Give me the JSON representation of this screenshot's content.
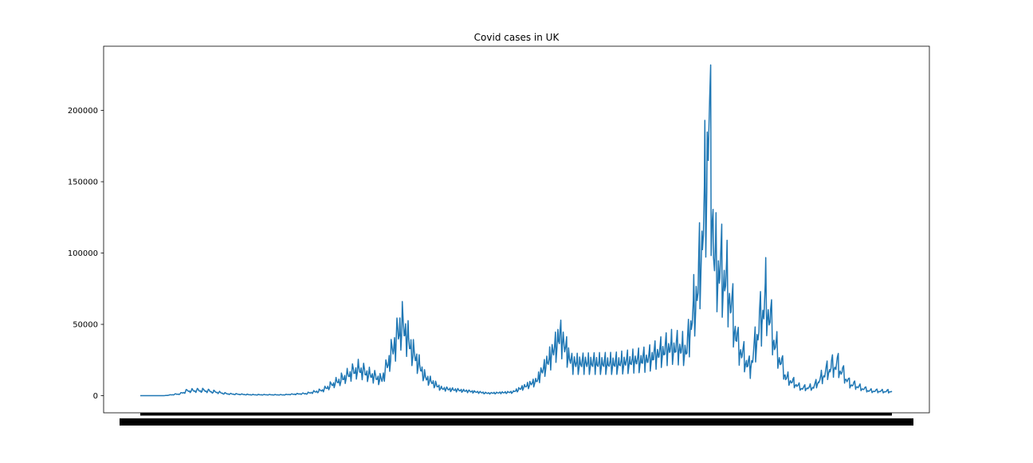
{
  "chart_data": {
    "type": "line",
    "title": "Covid cases in UK",
    "xlabel": "",
    "ylabel": "",
    "ylim": [
      -12000,
      245000
    ],
    "yticks": [
      0,
      50000,
      100000,
      150000,
      200000
    ],
    "ytick_labels": [
      "0",
      "50000",
      "100000",
      "150000",
      "200000"
    ],
    "grid": false,
    "legend": "none",
    "line_color": "#1f77b4",
    "x_note": "x tick labels are dense overlapping dates and are illegible",
    "x": [
      0,
      2,
      4,
      6,
      8,
      10,
      12,
      14,
      16,
      18,
      20,
      22,
      24,
      26,
      28,
      30,
      32,
      34,
      36,
      38,
      40,
      42,
      44,
      46,
      48,
      50,
      52,
      54,
      56,
      58,
      60,
      62,
      64,
      66,
      68,
      70,
      72,
      74,
      76,
      78,
      80,
      82,
      84,
      86,
      88,
      90,
      92,
      94,
      96,
      98,
      100,
      102,
      104,
      106,
      108,
      110,
      112,
      114,
      116,
      118,
      120,
      122,
      124,
      126,
      128,
      130,
      132,
      134,
      136,
      138,
      140,
      142,
      144,
      146,
      148,
      150,
      152,
      154,
      156,
      158,
      160,
      162,
      164,
      166,
      168,
      170,
      172,
      174,
      176,
      178,
      180,
      182,
      184,
      186,
      188,
      190,
      192,
      194,
      196,
      198,
      200,
      202,
      204,
      206,
      208,
      210,
      212,
      214,
      216,
      218,
      220,
      222,
      224,
      226,
      228,
      230,
      232,
      234,
      236,
      238,
      240,
      242,
      244,
      246,
      248,
      250,
      252,
      254,
      256,
      258,
      260,
      262,
      264,
      266,
      268,
      270,
      272,
      274,
      276,
      278,
      280,
      282,
      284,
      286,
      288,
      290,
      292,
      294,
      296,
      298,
      300,
      302,
      304,
      306,
      308,
      310,
      312,
      314,
      316,
      318,
      320,
      322,
      324,
      326,
      328,
      330,
      332,
      334,
      336,
      338,
      340,
      342,
      344,
      346,
      348,
      350,
      352,
      354,
      356,
      358,
      360,
      362,
      364,
      366,
      368,
      370,
      372,
      374,
      376,
      378,
      380,
      382,
      384,
      386,
      388,
      390,
      392,
      394,
      396,
      398,
      400,
      402,
      404,
      406,
      408,
      410,
      412,
      414,
      416,
      418,
      420,
      422,
      424,
      426,
      428,
      430,
      432,
      434,
      436,
      438,
      440,
      442,
      444,
      446,
      448,
      450,
      452,
      454,
      456,
      458,
      460,
      462,
      464,
      466,
      468,
      470,
      472,
      474,
      476,
      478,
      480,
      482,
      484,
      486,
      488,
      490,
      492,
      494,
      496,
      498,
      500,
      502,
      504,
      506,
      508,
      510,
      512,
      514,
      516,
      518,
      520,
      522,
      524,
      526,
      528,
      530,
      532,
      534,
      536,
      538,
      540,
      542,
      544,
      546,
      548,
      550,
      552,
      554,
      556,
      558,
      560,
      562,
      564,
      566,
      568,
      570,
      572,
      574,
      576,
      578,
      580,
      582,
      584,
      586,
      588,
      590,
      592,
      594,
      596,
      598,
      600,
      602,
      604,
      606,
      608,
      610,
      612,
      614,
      616,
      618,
      620,
      622,
      624,
      626,
      628,
      630,
      632,
      634,
      636,
      638,
      640,
      642,
      644,
      646,
      648,
      650,
      652,
      654,
      656,
      658,
      660,
      662,
      664,
      666,
      668,
      670,
      672,
      674,
      676,
      678,
      680,
      682,
      684,
      686,
      688,
      690,
      692,
      694,
      696,
      698,
      700,
      702,
      704,
      706,
      708,
      710,
      712,
      714,
      716,
      718,
      720,
      722,
      724,
      726,
      728,
      730,
      732,
      734,
      736,
      738,
      740,
      742,
      744,
      746,
      748,
      750,
      752,
      754,
      756,
      758,
      760,
      762,
      764,
      766,
      768,
      770,
      772,
      774,
      776,
      778,
      780,
      782,
      784,
      786,
      788,
      790,
      792,
      794,
      796,
      798,
      800,
      802,
      804,
      806,
      808,
      810,
      812,
      814,
      816,
      818,
      820,
      822,
      824,
      826,
      828,
      830,
      832,
      834,
      836,
      838,
      840,
      842,
      844,
      846,
      848,
      850,
      852,
      854,
      856,
      858,
      860,
      862,
      864,
      866,
      868,
      870,
      872,
      874,
      876,
      878,
      880,
      882,
      884,
      886,
      888,
      890,
      892,
      894,
      896,
      898,
      900,
      902,
      904,
      906,
      908,
      910,
      912,
      914,
      916,
      918,
      920,
      922,
      924,
      926,
      928,
      930,
      932,
      934,
      936,
      938,
      940,
      942,
      944,
      946,
      948,
      950,
      952,
      954,
      956,
      958,
      960,
      962,
      964,
      966,
      968,
      970,
      972,
      974,
      976,
      978,
      980,
      982,
      984,
      986,
      988,
      990,
      992,
      994,
      996,
      998,
      1000,
      1002,
      1004,
      1006,
      1008,
      1010,
      1012,
      1014,
      1016,
      1018,
      1020,
      1022,
      1024,
      1026,
      1028,
      1030,
      1032,
      1034,
      1036,
      1038,
      1040,
      1042,
      1044,
      1046,
      1048,
      1050,
      1052,
      1054,
      1056,
      1058,
      1060,
      1062,
      1064,
      1066,
      1068,
      1070,
      1072,
      1074,
      1076,
      1078,
      1080,
      1082,
      1084,
      1086,
      1088,
      1090,
      1092,
      1094,
      1096,
      1098,
      1100,
      1102,
      1104,
      1106,
      1108,
      1110,
      1112,
      1114,
      1116,
      1118,
      1120,
      1122,
      1124,
      1126,
      1128,
      1130,
      1132,
      1134,
      1136,
      1138,
      1140,
      1142,
      1144,
      1146,
      1148,
      1150,
      1152,
      1154,
      1156,
      1158,
      1160,
      1162,
      1164,
      1166,
      1168,
      1170,
      1172,
      1174,
      1176,
      1178,
      1180,
      1182,
      1184,
      1186,
      1188,
      1190,
      1192,
      1194,
      1196,
      1198,
      1200,
      1202,
      1204,
      1206,
      1208,
      1210,
      1212,
      1214,
      1216,
      1218,
      1220,
      1222,
      1224,
      1226,
      1228,
      1230,
      1232,
      1234,
      1236,
      1238,
      1240,
      1242,
      1244,
      1246,
      1248,
      1250,
      1252,
      1254,
      1256,
      1258,
      1260,
      1262,
      1264,
      1266,
      1268,
      1270,
      1272,
      1274,
      1276,
      1278,
      1280,
      1282,
      1284,
      1286,
      1288,
      1290,
      1292,
      1294,
      1296,
      1298,
      1300,
      1302,
      1304,
      1306,
      1308,
      1310,
      1312,
      1314,
      1316,
      1318,
      1320,
      1322,
      1324,
      1326,
      1328,
      1330,
      1332,
      1334,
      1336,
      1338,
      1340,
      1342,
      1344,
      1346,
      1348,
      1350,
      1352,
      1354,
      1356,
      1358,
      1360,
      1362,
      1364,
      1366,
      1368,
      1370,
      1372,
      1374,
      1376,
      1378,
      1380,
      1382,
      1384,
      1386,
      1388,
      1390,
      1392,
      1394,
      1396,
      1398,
      1400,
      1402,
      1404,
      1406,
      1408,
      1410,
      1412,
      1414,
      1416,
      1418,
      1420,
      1422,
      1424,
      1426,
      1428,
      1430,
      1432,
      1434,
      1436,
      1438,
      1440,
      1442,
      1444,
      1446,
      1448,
      1450,
      1452,
      1454,
      1456,
      1458,
      1460,
      1462,
      1464,
      1466,
      1468,
      1470,
      1472,
      1474,
      1476,
      1478,
      1480,
      1482,
      1484,
      1486,
      1488,
      1490,
      1492,
      1494,
      1496,
      1498,
      1500,
      1502,
      1504,
      1506,
      1508,
      1510,
      1512,
      1514,
      1516,
      1518,
      1520,
      1522,
      1524,
      1526,
      1528,
      1530,
      1532,
      1534,
      1536,
      1538,
      1540,
      1542,
      1544,
      1546,
      1548,
      1550,
      1552,
      1554,
      1556,
      1558,
      1560,
      1562,
      1564,
      1566,
      1568,
      1570,
      1572,
      1574,
      1576,
      1578,
      1580,
      1582,
      1584,
      1586,
      1588,
      1590,
      1592,
      1594,
      1596,
      1598,
      1600,
      1602,
      1604,
      1606,
      1608,
      1610,
      1612,
      1614,
      1616,
      1618,
      1620,
      1622,
      1624,
      1626,
      1628,
      1630,
      1632,
      1634,
      1636,
      1638,
      1640,
      1642,
      1644,
      1646,
      1648,
      1650,
      1652,
      1654,
      1656,
      1658,
      1660,
      1662,
      1664,
      1666,
      1668,
      1670,
      1672,
      1674,
      1676,
      1678,
      1680,
      1682,
      1684,
      1686,
      1688,
      1690,
      1692,
      1694,
      1696,
      1698,
      1700,
      1702,
      1704,
      1706,
      1708,
      1710,
      1712,
      1714,
      1716,
      1718,
      1720,
      1722,
      1724,
      1726,
      1728,
      1730,
      1732,
      1734,
      1736,
      1738,
      1740,
      1742,
      1744,
      1746,
      1748,
      1750,
      1752,
      1754,
      1756,
      1758,
      1760,
      1762,
      1764,
      1766,
      1768,
      1770,
      1772,
      1774,
      1776,
      1778,
      1780,
      1782,
      1784,
      1786,
      1788,
      1790,
      1792,
      1794,
      1796,
      1798,
      1800,
      1802,
      1804,
      1806,
      1808,
      1810,
      1812,
      1814,
      1816,
      1818,
      1820,
      1822,
      1824,
      1826,
      1828,
      1830,
      1832,
      1834,
      1836,
      1838,
      1840,
      1842,
      1844,
      1846,
      1848,
      1850,
      1852,
      1854,
      1856,
      1858,
      1860,
      1862,
      1864,
      1866,
      1868,
      1870,
      1872,
      1874,
      1876,
      1878,
      1880,
      1882,
      1884,
      1886,
      1888,
      1890,
      1892,
      1894,
      1896,
      1898,
      1900,
      1902,
      1904,
      1906,
      1908,
      1910,
      1912,
      1914,
      1916,
      1918,
      1920,
      1922,
      1924,
      1926,
      1928,
      1930,
      1932,
      1934,
      1936,
      1938,
      1940,
      1942,
      1944,
      1946,
      1948,
      1950,
      1952,
      1954,
      1956,
      1958,
      1960,
      1962,
      1964,
      1966,
      1968,
      1970,
      1972,
      1974,
      1976,
      1978,
      1980,
      1982,
      1984,
      1986,
      1988,
      1990,
      1992,
      1994,
      1996,
      1998,
      2000,
      2002,
      2004,
      2006,
      2008,
      2010,
      2012,
      2014,
      2016,
      2018,
      2020,
      2022,
      2024,
      2026,
      2028,
      2030,
      2032,
      2034,
      2036,
      2038,
      2040,
      2042,
      2044,
      2046,
      2048,
      2050,
      2052,
      2054,
      2056,
      2058,
      2060,
      2062,
      2064,
      2066,
      2068,
      2070,
      2072,
      2074,
      2076,
      2078,
      2080,
      2082,
      2084,
      2086,
      2088,
      2090,
      2092,
      2094,
      2096,
      2098,
      2100,
      2102,
      2104,
      2106,
      2108,
      2110,
      2112,
      2114,
      2116,
      2118,
      2120,
      2122,
      2124,
      2126,
      2128,
      2130,
      2132,
      2134,
      2136,
      2138,
      2140,
      2142,
      2144,
      2146,
      2148,
      2150,
      2152,
      2154,
      2156,
      2158,
      2160,
      2162,
      2164,
      2166,
      2168,
      2170,
      2172,
      2174,
      2176,
      2178,
      2180,
      2182,
      2184,
      2186,
      2188,
      2190,
      2192,
      2194,
      2196,
      2198,
      2200,
      2202,
      2204,
      2206,
      2208,
      2210,
      2212,
      2214,
      2216,
      2218,
      2220,
      2222,
      2224,
      2226,
      2228,
      2230,
      2232,
      2234,
      2236,
      2238,
      2240,
      2242,
      2244,
      2246,
      2248,
      2250,
      2252,
      2254,
      2256,
      2258,
      2260,
      2262,
      2264,
      2266,
      2268,
      2270,
      2272,
      2274,
      2276,
      2278,
      2280,
      2282,
      2284,
      2286,
      2288,
      2290,
      2292,
      2294,
      2296,
      2298,
      2300,
      2302,
      2304,
      2306,
      2308,
      2310,
      2312,
      2314,
      2316,
      2318,
      2320,
      2322,
      2324,
      2326,
      2328,
      2330,
      2332,
      2334,
      2336,
      2338,
      2340,
      2342,
      2344,
      2346,
      2348,
      2350,
      2352,
      2354,
      2356,
      2358,
      2360,
      2362,
      2364,
      2366,
      2368,
      2370,
      2372,
      2374,
      2376,
      2378,
      2380,
      2382,
      2384,
      2386,
      2388,
      2390,
      2392,
      2394,
      2396,
      2398,
      2400,
      2402,
      2404,
      2406,
      2408,
      2410,
      2412,
      2414,
      2416,
      2418,
      2420,
      2422,
      2424,
      2426,
      2428,
      2430,
      2432,
      2434,
      2436,
      2438,
      2440,
      2442,
      2444,
      2446,
      2448,
      2450,
      2452,
      2454,
      2456,
      2458,
      2460,
      2462,
      2464,
      2466,
      2468,
      2470,
      2472,
      2474,
      2476,
      2478,
      2480,
      2482,
      2484,
      2486,
      2488,
      2490,
      2492,
      2494,
      2496,
      2498,
      2500,
      2502,
      2504,
      2506,
      2508,
      2510,
      2512,
      2514,
      2516,
      2518,
      2520,
      2522,
      2524,
      2526,
      2528,
      2530,
      2532,
      2534,
      2536,
      2538,
      2540,
      2542,
      2544,
      2546,
      2548,
      2550,
      2552,
      2554,
      2556,
      2558,
      2560,
      2562,
      2564,
      2566,
      2568,
      2570,
      2572,
      2574,
      2576,
      2578,
      2580,
      2582,
      2584,
      2586,
      2588,
      2590,
      2592,
      2594,
      2596,
      2598,
      2600,
      2602,
      2604,
      2606,
      2608,
      2610,
      2612,
      2614,
      2616,
      2618,
      2620,
      2622,
      2624,
      2626,
      2628,
      2630,
      2632,
      2634,
      2636,
      2638,
      2640,
      2642,
      2644,
      2646,
      2648,
      2650,
      2652,
      2654,
      2656,
      2658,
      2660,
      2662,
      2664,
      2666,
      2668,
      2670,
      2672,
      2674,
      2676,
      2678,
      2680,
      2682,
      2684,
      2686,
      2688,
      2690,
      2692,
      2694,
      2696,
      2698,
      2700,
      2702,
      2704,
      2706,
      2708,
      2710,
      2712,
      2714,
      2716,
      2718,
      2720,
      2722,
      2724,
      2726,
      2728,
      2730,
      2732,
      2734,
      2736,
      2738,
      2740,
      2742,
      2744,
      2746,
      2748,
      2750,
      2752,
      2754,
      2756,
      2758,
      2760,
      2762,
      2764,
      2766,
      2768,
      2770,
      2772,
      2774,
      2776,
      2778,
      2780,
      2782,
      2784,
      2786,
      2788,
      2790,
      2792,
      2794,
      2796,
      2798,
      2800,
      2802,
      2804,
      2806,
      2808,
      2810,
      2812,
      2814,
      2816,
      2818,
      2820,
      2822,
      2824,
      2826,
      2828,
      2830,
      2832,
      2834,
      2836,
      2838,
      2840,
      2842,
      2844,
      2846,
      2848,
      2850,
      2852,
      2854,
      2856,
      2858,
      2860,
      2862,
      2864,
      2866,
      2868,
      2870,
      2872,
      2874,
      2876,
      2878,
      2880,
      2882,
      2884,
      2886,
      2888,
      2890,
      2892,
      2894,
      2896,
      2898,
      2900,
      2902,
      2904,
      2906,
      2908,
      2910,
      2912,
      2914,
      2916,
      2918,
      2920,
      2922,
      2924,
      2926,
      2928,
      2930,
      2932,
      2934,
      2936,
      2938,
      2940,
      2942,
      2944,
      2946,
      2948,
      2950,
      2952,
      2954,
      2956,
      2958,
      2960,
      2962,
      2964,
      2966,
      2968,
      2970,
      2972,
      2974,
      2976,
      2978,
      2980,
      2982,
      2984,
      2986,
      2988,
      2990,
      2992,
      2994,
      2996,
      2998,
      3000,
      3002,
      3004,
      3006,
      3008,
      3010,
      3012,
      3014,
      3016,
      3018,
      3020,
      3022,
      3024,
      3026,
      3028,
      3030,
      3032,
      3034,
      3036,
      3038,
      3040,
      3042,
      3044,
      3046,
      3048,
      3050,
      3052,
      3054,
      3056,
      3058,
      3060,
      3062,
      3064,
      3066,
      3068,
      3070,
      3072,
      3074,
      3076,
      3078,
      3080,
      3082,
      3084,
      3086,
      3088,
      3090,
      3092,
      3094,
      3096,
      3098,
      3100,
      3102,
      3104,
      3106,
      3108,
      3110
    ],
    "series": []
  }
}
